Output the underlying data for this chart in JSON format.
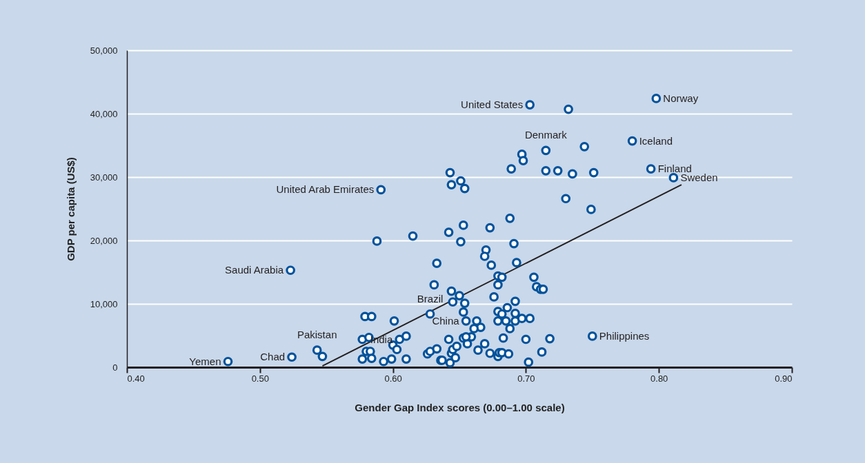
{
  "chart_data": {
    "type": "scatter",
    "xlabel": "Gender Gap Index scores (0.00–1.00 scale)",
    "ylabel": "GDP per capita (US$)",
    "xlim": [
      0.4,
      0.9
    ],
    "xticks": [
      {
        "value": 0.4,
        "label": "0.40"
      },
      {
        "value": 0.5,
        "label": "0.50"
      },
      {
        "value": 0.6,
        "label": "0.60"
      },
      {
        "value": 0.7,
        "label": "0.70"
      },
      {
        "value": 0.8,
        "label": "0.80"
      },
      {
        "value": 0.9,
        "label": "0.90"
      }
    ],
    "ylim": [
      0,
      50000
    ],
    "yticks": [
      {
        "value": 0,
        "label": "0"
      },
      {
        "value": 10000,
        "label": "10,000"
      },
      {
        "value": 20000,
        "label": "20,000"
      },
      {
        "value": 30000,
        "label": "30,000"
      },
      {
        "value": 40000,
        "label": "40,000"
      },
      {
        "value": 50000,
        "label": "50,000"
      }
    ],
    "grid": "y",
    "series": [
      {
        "marker": "circle",
        "color": "#00529b",
        "x": [
          0.703,
          0.732,
          0.798,
          0.78,
          0.794,
          0.811,
          0.715,
          0.744,
          0.697,
          0.698,
          0.689,
          0.715,
          0.724,
          0.735,
          0.751,
          0.73,
          0.749,
          0.591,
          0.643,
          0.651,
          0.644,
          0.654,
          0.523,
          0.476,
          0.524,
          0.543,
          0.547,
          0.75,
          0.588,
          0.615,
          0.642,
          0.653,
          0.651,
          0.673,
          0.688,
          0.691,
          0.67,
          0.669,
          0.633,
          0.674,
          0.693,
          0.679,
          0.682,
          0.679,
          0.706,
          0.708,
          0.711,
          0.713,
          0.631,
          0.644,
          0.65,
          0.645,
          0.654,
          0.676,
          0.692,
          0.628,
          0.653,
          0.655,
          0.663,
          0.666,
          0.661,
          0.679,
          0.686,
          0.682,
          0.692,
          0.679,
          0.685,
          0.692,
          0.697,
          0.703,
          0.688,
          0.579,
          0.584,
          0.601,
          0.577,
          0.582,
          0.605,
          0.61,
          0.6,
          0.603,
          0.58,
          0.583,
          0.577,
          0.584,
          0.593,
          0.599,
          0.61,
          0.626,
          0.628,
          0.633,
          0.636,
          0.637,
          0.643,
          0.644,
          0.645,
          0.648,
          0.647,
          0.642,
          0.653,
          0.656,
          0.659,
          0.655,
          0.664,
          0.669,
          0.673,
          0.679,
          0.68,
          0.682,
          0.687,
          0.683,
          0.7,
          0.712,
          0.718,
          0.702
        ],
        "values": [
          41400,
          40700,
          42400,
          35700,
          31300,
          29900,
          34200,
          34800,
          33600,
          32600,
          31300,
          31000,
          31000,
          30500,
          30700,
          26600,
          24900,
          28000,
          30700,
          29400,
          28800,
          28200,
          15300,
          900,
          1600,
          2700,
          1700,
          4900,
          19900,
          20700,
          21300,
          22400,
          19800,
          22000,
          23500,
          19500,
          18500,
          17500,
          16400,
          16100,
          16500,
          14400,
          14200,
          13000,
          14200,
          12700,
          12300,
          12300,
          13000,
          12000,
          11300,
          10300,
          10100,
          11100,
          10400,
          8400,
          8700,
          7300,
          7300,
          6300,
          6100,
          8800,
          9400,
          8400,
          8500,
          7300,
          7300,
          7300,
          7700,
          7700,
          6100,
          8000,
          8000,
          7300,
          4400,
          4700,
          4400,
          4900,
          3500,
          2800,
          2500,
          2500,
          1300,
          1400,
          900,
          1300,
          1300,
          2100,
          2500,
          2900,
          1100,
          1100,
          700,
          2200,
          2800,
          3300,
          1500,
          4400,
          4600,
          3700,
          4800,
          4800,
          2700,
          3700,
          2200,
          1700,
          2300,
          2300,
          2100,
          4600,
          4400,
          2400,
          4500,
          800
        ]
      },
      {
        "type": "line",
        "color": "#231f20",
        "x": [
          0.547,
          0.817
        ],
        "values": [
          200,
          28800
        ]
      }
    ],
    "annotations": [
      {
        "text": "United States",
        "x": 0.703,
        "y": 41400
      },
      {
        "text": "Norway",
        "x": 0.798,
        "y": 42400
      },
      {
        "text": "Denmark",
        "x": 0.715,
        "y": 34200
      },
      {
        "text": "Iceland",
        "x": 0.78,
        "y": 35700
      },
      {
        "text": "Finland",
        "x": 0.794,
        "y": 31300
      },
      {
        "text": "Sweden",
        "x": 0.811,
        "y": 29900
      },
      {
        "text": "United Arab Emirates",
        "x": 0.591,
        "y": 28000
      },
      {
        "text": "Saudi Arabia",
        "x": 0.523,
        "y": 15300
      },
      {
        "text": "Brazil",
        "x": 0.628,
        "y": 8400
      },
      {
        "text": "China",
        "x": 0.655,
        "y": 7300
      },
      {
        "text": "Philippines",
        "x": 0.75,
        "y": 4900
      },
      {
        "text": "Pakistan",
        "x": 0.543,
        "y": 2700
      },
      {
        "text": "India",
        "x": 0.605,
        "y": 4400
      },
      {
        "text": "Chad",
        "x": 0.524,
        "y": 1600
      },
      {
        "text": "Yemen",
        "x": 0.476,
        "y": 900
      }
    ]
  }
}
